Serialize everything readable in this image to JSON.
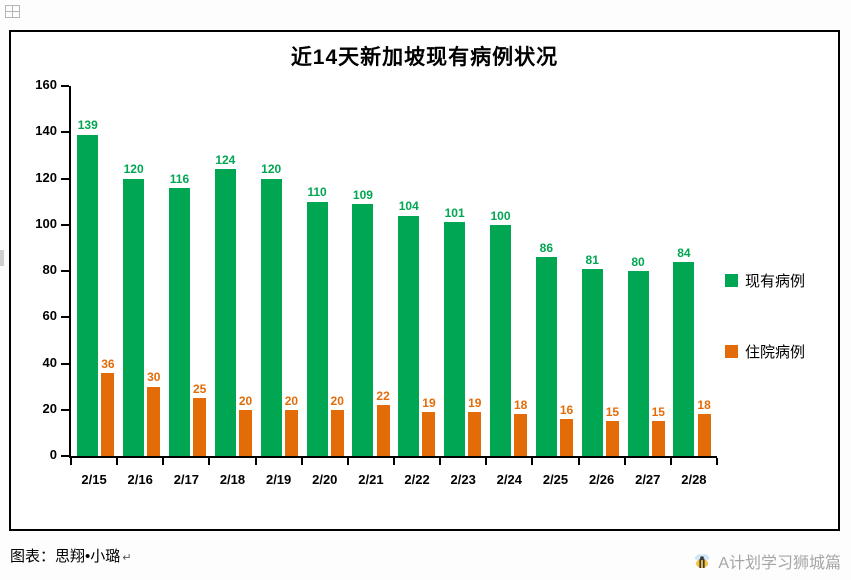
{
  "chart_data": {
    "type": "bar",
    "title": "近14天新加坡现有病例状况",
    "categories": [
      "2/15",
      "2/16",
      "2/17",
      "2/18",
      "2/19",
      "2/20",
      "2/21",
      "2/22",
      "2/23",
      "2/24",
      "2/25",
      "2/26",
      "2/27",
      "2/28"
    ],
    "series": [
      {
        "name": "现有病例",
        "color": "#00a651",
        "values": [
          139,
          120,
          116,
          124,
          120,
          110,
          109,
          104,
          101,
          100,
          86,
          81,
          80,
          84
        ]
      },
      {
        "name": "住院病例",
        "color": "#e36c09",
        "values": [
          36,
          30,
          25,
          20,
          20,
          20,
          22,
          19,
          19,
          18,
          16,
          15,
          15,
          18
        ]
      }
    ],
    "ylim": [
      0,
      160
    ],
    "ytick_step": 20,
    "xlabel": "",
    "ylabel": "",
    "grid": false,
    "legend_position": "right"
  },
  "footer": {
    "credit": "图表：思翔•小璐",
    "paragraph_mark": "↵",
    "watermark": "A计划学习狮城篇"
  }
}
